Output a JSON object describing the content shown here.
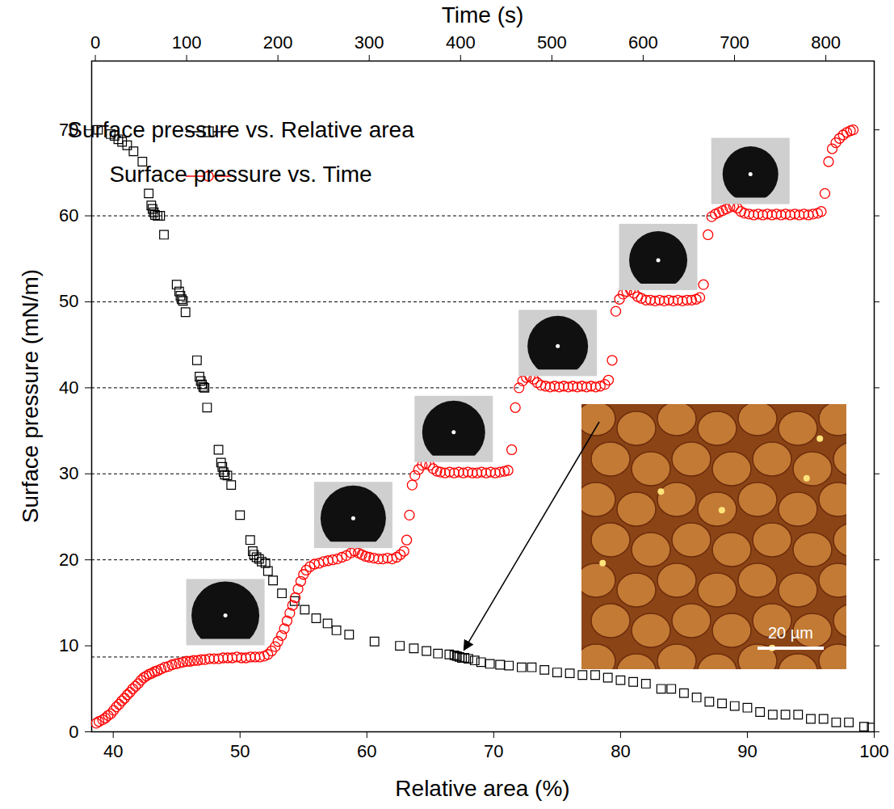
{
  "chart_data": {
    "type": "scatter",
    "xlabel": "Relative area (%)",
    "x2label": "Time (s)",
    "ylabel": "Surface pressure (mN/m)",
    "xlim": [
      38.3,
      100
    ],
    "xticks": [
      40,
      50,
      60,
      70,
      80,
      90,
      100
    ],
    "x2lim": [
      -4,
      853
    ],
    "x2ticks": [
      0,
      100,
      200,
      300,
      400,
      500,
      600,
      700,
      800
    ],
    "ylim": [
      0,
      78
    ],
    "yticks": [
      0,
      10,
      20,
      30,
      40,
      50,
      60,
      70
    ],
    "grid": false,
    "legend": "upper left",
    "reference_lines": [
      8.7,
      20,
      30,
      40,
      50,
      60
    ],
    "inset_arrow_target": {
      "x": 67.3,
      "y": 8.7
    },
    "inset_scale_bar_label": "20 µm",
    "series": [
      {
        "name": "Surface pressure vs. Relative area",
        "color": "#000000",
        "marker": "square",
        "x": [
          38.8,
          39.8,
          40.1,
          40.4,
          40.7,
          41.1,
          41.6,
          42.3,
          42.8,
          43.0,
          43.1,
          43.2,
          43.3,
          43.5,
          43.7,
          44.0,
          45.0,
          45.2,
          45.3,
          45.4,
          45.5,
          45.7,
          46.6,
          46.8,
          46.9,
          47.0,
          47.1,
          47.2,
          47.4,
          48.3,
          48.5,
          48.6,
          48.7,
          48.8,
          49.0,
          49.3,
          50.0,
          50.8,
          51.0,
          51.1,
          51.3,
          51.5,
          51.7,
          52.0,
          52.2,
          52.6,
          53.3,
          54.3,
          55.1,
          56.0,
          56.9,
          57.6,
          58.6,
          60.6,
          62.6,
          63.7,
          64.7,
          65.6,
          66.5,
          66.9,
          67.1,
          67.3,
          67.5,
          67.7,
          68.0,
          68.5,
          69.0,
          69.7,
          70.5,
          71.2,
          72.2,
          73.0,
          74.0,
          75.0,
          76.0,
          77.0,
          78.0,
          79.0,
          80.0,
          81.0,
          82.0,
          83.2,
          84.0,
          85.0,
          86.0,
          87.0,
          88.0,
          89.0,
          90.0,
          91.0,
          92.0,
          93.0,
          94.0,
          95.0,
          96.0,
          97.0,
          98.0,
          99.2,
          99.8
        ],
        "values": [
          70.0,
          69.5,
          69.3,
          68.9,
          68.6,
          68.2,
          67.5,
          66.3,
          62.6,
          61.2,
          60.8,
          60.4,
          60.1,
          60.0,
          60.0,
          57.8,
          52.0,
          51.2,
          50.7,
          50.3,
          50.1,
          48.8,
          43.2,
          41.3,
          40.8,
          40.4,
          40.1,
          40.0,
          37.7,
          32.8,
          31.3,
          30.8,
          30.2,
          29.9,
          29.8,
          28.7,
          25.2,
          22.3,
          21.0,
          20.6,
          20.3,
          20.1,
          19.8,
          19.6,
          18.7,
          17.6,
          16.1,
          15.2,
          14.2,
          13.2,
          12.6,
          11.8,
          11.3,
          10.5,
          10.0,
          9.7,
          9.4,
          9.1,
          9.0,
          8.9,
          8.8,
          8.7,
          8.6,
          8.6,
          8.5,
          8.3,
          8.1,
          7.9,
          7.8,
          7.7,
          7.5,
          7.5,
          7.2,
          6.9,
          6.8,
          6.6,
          6.6,
          6.3,
          6.0,
          5.8,
          5.6,
          5.0,
          5.0,
          4.5,
          4.0,
          3.5,
          3.3,
          3.0,
          2.8,
          2.3,
          2.0,
          2.0,
          2.0,
          1.5,
          1.5,
          1.1,
          1.1,
          0.6,
          0.5
        ]
      },
      {
        "name": "Surface pressure vs. Time",
        "color": "#ff0000",
        "marker": "circle",
        "axis": "x2",
        "x": [
          1,
          4,
          8,
          11,
          14,
          17,
          20,
          23,
          26,
          29,
          32,
          35,
          38,
          41,
          44,
          47,
          50,
          53,
          56,
          59,
          62,
          65,
          68,
          72,
          76,
          80,
          84,
          88,
          92,
          96,
          100,
          104,
          108,
          112,
          116,
          120,
          125,
          130,
          135,
          140,
          145,
          150,
          155,
          160,
          165,
          170,
          175,
          180,
          185,
          189,
          193,
          197,
          200,
          204,
          207,
          210,
          213,
          216,
          219,
          222,
          225,
          228,
          231,
          235,
          240,
          245,
          250,
          255,
          260,
          265,
          270,
          275,
          280,
          284,
          288,
          292,
          296,
          300,
          305,
          310,
          315,
          320,
          325,
          330,
          334,
          338,
          341,
          344,
          347,
          350,
          354,
          358,
          362,
          366,
          370,
          374,
          378,
          383,
          388,
          393,
          398,
          403,
          408,
          413,
          418,
          423,
          428,
          433,
          438,
          443,
          448,
          452,
          456,
          460,
          464,
          468,
          472,
          476,
          480,
          484,
          488,
          493,
          498,
          503,
          508,
          513,
          518,
          523,
          528,
          533,
          538,
          543,
          548,
          553,
          558,
          562,
          566,
          570,
          574,
          578,
          582,
          586,
          590,
          594,
          598,
          603,
          608,
          613,
          618,
          623,
          628,
          633,
          638,
          643,
          648,
          653,
          658,
          662,
          666,
          671,
          675,
          679,
          683,
          687,
          691,
          695,
          699,
          703,
          707,
          711,
          716,
          721,
          726,
          731,
          736,
          741,
          746,
          751,
          756,
          761,
          766,
          771,
          776,
          781,
          786,
          791,
          795,
          799,
          803,
          807,
          811,
          815,
          819,
          823,
          827,
          830
        ],
        "values": [
          1.0,
          1.2,
          1.4,
          1.6,
          1.9,
          2.1,
          2.5,
          2.9,
          3.2,
          3.6,
          3.9,
          4.3,
          4.6,
          5.0,
          5.3,
          5.6,
          6.0,
          6.3,
          6.5,
          6.7,
          6.8,
          7.0,
          7.1,
          7.3,
          7.5,
          7.6,
          7.8,
          7.9,
          8.0,
          8.1,
          8.2,
          8.2,
          8.3,
          8.3,
          8.4,
          8.4,
          8.5,
          8.5,
          8.5,
          8.6,
          8.6,
          8.6,
          8.7,
          8.6,
          8.6,
          8.7,
          8.7,
          8.7,
          8.8,
          9.0,
          9.4,
          9.9,
          10.5,
          11.2,
          12.0,
          12.9,
          13.8,
          14.7,
          15.6,
          16.6,
          17.5,
          18.3,
          18.8,
          19.2,
          19.5,
          19.6,
          19.8,
          19.9,
          20.0,
          20.1,
          20.3,
          20.5,
          20.8,
          21.0,
          20.8,
          20.6,
          20.4,
          20.3,
          20.2,
          20.1,
          20.1,
          20.2,
          20.1,
          20.3,
          20.6,
          21.0,
          22.3,
          25.2,
          28.7,
          29.8,
          30.5,
          31.0,
          31.2,
          31.0,
          30.6,
          30.3,
          30.2,
          30.1,
          30.2,
          30.1,
          30.2,
          30.1,
          30.2,
          30.1,
          30.1,
          30.2,
          30.1,
          30.2,
          30.1,
          30.2,
          30.3,
          30.4,
          32.8,
          37.7,
          40.0,
          40.8,
          41.2,
          41.3,
          41.0,
          40.6,
          40.3,
          40.2,
          40.1,
          40.2,
          40.1,
          40.2,
          40.1,
          40.2,
          40.1,
          40.2,
          40.1,
          40.2,
          40.1,
          40.2,
          40.4,
          40.9,
          43.2,
          48.9,
          50.3,
          50.9,
          51.2,
          51.4,
          51.0,
          50.6,
          50.4,
          50.2,
          50.2,
          50.1,
          50.2,
          50.1,
          50.2,
          50.1,
          50.2,
          50.1,
          50.2,
          50.2,
          50.3,
          50.5,
          52.0,
          57.8,
          59.9,
          60.2,
          60.4,
          60.6,
          60.8,
          61.0,
          61.1,
          60.9,
          60.5,
          60.3,
          60.2,
          60.1,
          60.2,
          60.1,
          60.2,
          60.1,
          60.2,
          60.1,
          60.2,
          60.1,
          60.2,
          60.1,
          60.2,
          60.1,
          60.2,
          60.3,
          60.5,
          62.6,
          66.3,
          67.8,
          68.5,
          69.0,
          69.4,
          69.7,
          69.9,
          70.0
        ]
      }
    ]
  }
}
